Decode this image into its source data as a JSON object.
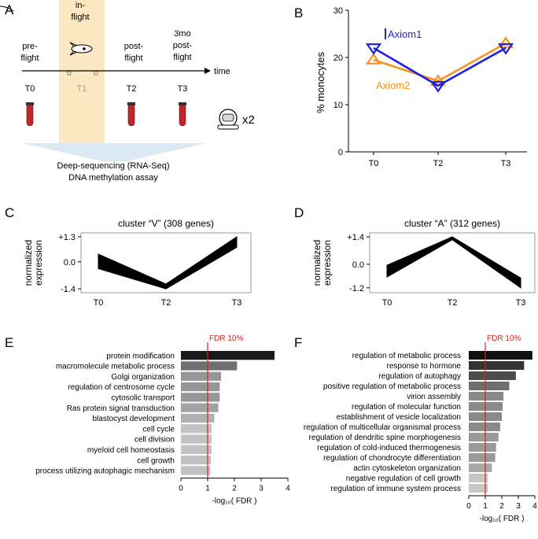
{
  "panel_letters": [
    "A",
    "B",
    "C",
    "D",
    "E",
    "F"
  ],
  "panelA": {
    "phases": [
      "pre-\nflight",
      "in-\nflight",
      "post-\nflight",
      "3mo\npost-\nflight"
    ],
    "timepoints": [
      "T0",
      "T1",
      "T2",
      "T3"
    ],
    "time_label": "time",
    "replicate_label": "x2",
    "assay_lines": [
      "Deep-sequencing (RNA-Seq)",
      "DNA methylation assay"
    ],
    "highlight_color": "#fbe8c2",
    "tube_color": "#c0272d"
  },
  "chart_data": [
    {
      "id": "B",
      "type": "line",
      "title": "",
      "xlabel": "",
      "ylabel": "% monocytes",
      "categories": [
        "T0",
        "T2",
        "T3"
      ],
      "ylim": [
        0,
        30
      ],
      "yticks": [
        0,
        10,
        20,
        30
      ],
      "series": [
        {
          "name": "Axiom1",
          "values": [
            22,
            14,
            22
          ],
          "color": "#1f1fe0",
          "marker": "triangle-down"
        },
        {
          "name": "Axiom2",
          "values": [
            19.5,
            15,
            23
          ],
          "color": "#f7931e",
          "marker": "triangle-up"
        }
      ]
    },
    {
      "id": "C",
      "type": "area",
      "title": "cluster “V” (308 genes)",
      "ylabel": "normalized\nexpression",
      "categories": [
        "T0",
        "T2",
        "T3"
      ],
      "ytick_labels": [
        "+1.3",
        "0.0",
        "-1.4"
      ],
      "yticks": [
        1.3,
        0.0,
        -1.4
      ],
      "ylim": [
        -1.6,
        1.5
      ],
      "band": {
        "upper": [
          0.4,
          -1.15,
          1.3
        ],
        "lower": [
          -0.35,
          -1.4,
          0.75
        ]
      },
      "color": "#000000"
    },
    {
      "id": "D",
      "type": "area",
      "title": "cluster “A” (312 genes)",
      "ylabel": "normalized\nexpression",
      "categories": [
        "T0",
        "T2",
        "T3"
      ],
      "ytick_labels": [
        "+1.4",
        "0.0",
        "-1.2"
      ],
      "yticks": [
        1.4,
        0.0,
        -1.2
      ],
      "ylim": [
        -1.45,
        1.6
      ],
      "band": {
        "upper": [
          -0.05,
          1.4,
          -0.7
        ],
        "lower": [
          -0.65,
          1.25,
          -1.2
        ]
      },
      "color": "#000000"
    },
    {
      "id": "E",
      "type": "bar",
      "orientation": "horizontal",
      "xlabel": "-log₁₀( FDR )",
      "xlim": [
        0,
        4
      ],
      "xticks": [
        0,
        1,
        2,
        3,
        4
      ],
      "threshold": {
        "value": 1,
        "label": "FDR 10%",
        "color": "#e0201b"
      },
      "categories": [
        "protein modification",
        "macromolecule metabolic process",
        "Golgi organization",
        "regulation of centrosome cycle",
        "cytosolic transport",
        "Ras protein signal transduction",
        "blastocyst development",
        "cell cycle",
        "cell division",
        "myeloid cell homeostasis",
        "cell growth",
        "process utilizing autophagic mechanism"
      ],
      "values": [
        3.5,
        2.1,
        1.5,
        1.45,
        1.45,
        1.4,
        1.25,
        1.15,
        1.15,
        1.15,
        1.12,
        1.1
      ],
      "colors": [
        "#1a1a1a",
        "#707070",
        "#969696",
        "#969696",
        "#969696",
        "#a3a3a3",
        "#b0b0b0",
        "#c2c2c2",
        "#c2c2c2",
        "#c2c2c2",
        "#c2c2c2",
        "#c2c2c2"
      ]
    },
    {
      "id": "F",
      "type": "bar",
      "orientation": "horizontal",
      "xlabel": "-log₁₀( FDR )",
      "xlim": [
        0,
        4
      ],
      "xticks": [
        0,
        1,
        2,
        3,
        4
      ],
      "threshold": {
        "value": 1,
        "label": "FDR 10%",
        "color": "#e0201b"
      },
      "categories": [
        "regulation of metabolic process",
        "response to hormone",
        "regulation of autophagy",
        "positive regulation of metabolic process",
        "virion assembly",
        "regulation of molecular function",
        "establishment of vesicle localization",
        "regulation of multicellular organismal process",
        "regulation of dendritic spine morphogenesis",
        "regulation of cold-induced thermogenesis",
        "regulation of chondrocyte differentiation",
        "actin cytoskeleton organization",
        "negative regulation of cell growth",
        "regulation of immune system process"
      ],
      "values": [
        3.85,
        3.35,
        2.85,
        2.45,
        2.1,
        2.05,
        2.0,
        1.9,
        1.8,
        1.65,
        1.6,
        1.4,
        1.15,
        1.15
      ],
      "colors": [
        "#111111",
        "#333333",
        "#4d4d4d",
        "#6e6e6e",
        "#8a8a8a",
        "#8a8a8a",
        "#8a8a8a",
        "#8a8a8a",
        "#9a9a9a",
        "#9a9a9a",
        "#9a9a9a",
        "#a8a8a8",
        "#c6c6c6",
        "#c6c6c6"
      ]
    }
  ]
}
